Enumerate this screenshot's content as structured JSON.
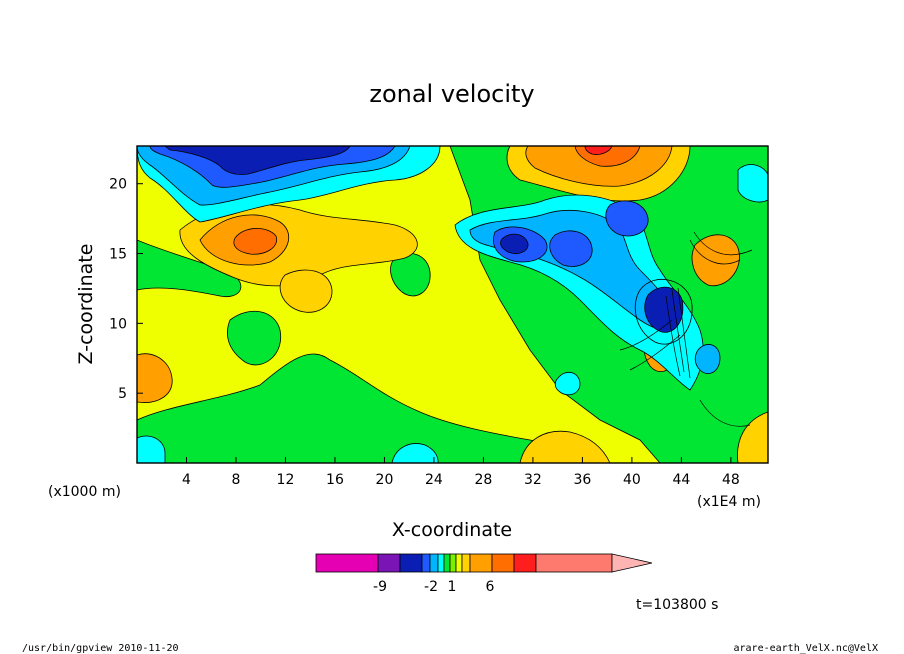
{
  "chart_data": {
    "type": "heatmap",
    "title": "zonal velocity",
    "xlabel": "X-coordinate",
    "ylabel": "Z-coordinate",
    "x_unit_left": "(x1000 m)",
    "x_unit_right": "(x1E4 m)",
    "x_ticks": [
      "4",
      "8",
      "12",
      "16",
      "20",
      "24",
      "28",
      "32",
      "36",
      "40",
      "44",
      "48"
    ],
    "y_ticks": [
      "5",
      "10",
      "15",
      "20"
    ],
    "xlim": [
      0,
      51
    ],
    "ylim": [
      0,
      22.7
    ],
    "colorbar": {
      "tick_labels": [
        "-9",
        "-2",
        "1",
        "6"
      ],
      "colors": [
        "#e600b4",
        "#7a14b4",
        "#0a1eb4",
        "#1e5aff",
        "#00b4ff",
        "#00ffff",
        "#00e632",
        "#78f000",
        "#f0ff00",
        "#ffd200",
        "#ffa000",
        "#ff6e00",
        "#ff1e1e",
        "#ff7a6e",
        "#ffb4b4"
      ]
    },
    "time_label": "t=103800 s"
  },
  "footer": {
    "left": "/usr/bin/gpview   2010-11-20",
    "right": "arare-earth_VelX.nc@VelX"
  },
  "palette": {
    "bg": "#f0ff00",
    "green": "#00e632",
    "light_green": "#78f000",
    "yellow_orange": "#ffd200",
    "orange": "#ffa000",
    "dark_orange": "#ff6e00",
    "red": "#ff1e1e",
    "cyan": "#00ffff",
    "sky": "#00b4ff",
    "blue": "#1e5aff",
    "navy": "#0a1eb4"
  }
}
